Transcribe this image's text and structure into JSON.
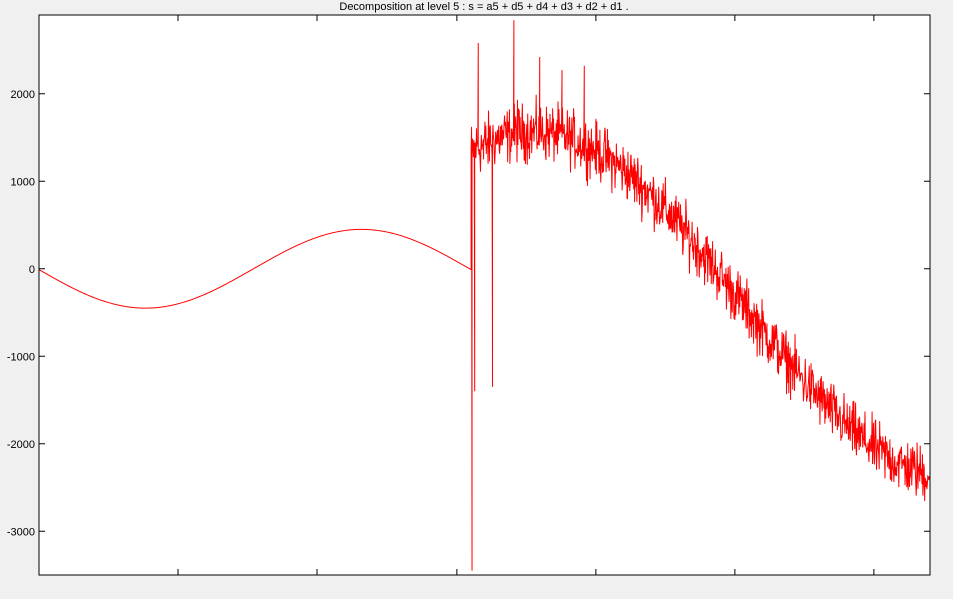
{
  "chart_data": {
    "type": "line",
    "title": "Decomposition at level 5 : s = a5 + d5 + d4 + d3 + d2 + d1 .",
    "xlabel": "",
    "ylabel": "",
    "xlim": [
      0,
      1000
    ],
    "ylim": [
      -3500,
      2900
    ],
    "yticks": [
      2000,
      1000,
      0,
      -1000,
      -2000,
      -3000
    ],
    "ytick_labels": [
      "2000",
      "1000",
      "0",
      "-1000",
      "-2000",
      "-3000"
    ],
    "xticks": [
      156,
      312,
      469,
      625,
      781,
      937
    ],
    "xtick_labels": [],
    "grid": false,
    "colors": {
      "series": "#ff0000",
      "axes_bg": "#ffffff",
      "figure_bg": "#f0f0f0",
      "axis": "#000000"
    },
    "series": [
      {
        "segments": [
          {
            "kind": "sine",
            "x_start": 0,
            "x_end": 485,
            "amplitude": 450,
            "offset": 0,
            "period": 485,
            "phase_x": 362
          },
          {
            "kind": "noisy-sine",
            "x_start": 485,
            "x_end": 1000,
            "amplitude": 1970,
            "offset": -410,
            "period": 940,
            "phase_x": 555,
            "noise": 160
          }
        ],
        "spikes": [
          {
            "x": 486,
            "y": -3450
          },
          {
            "x": 489,
            "y": -1400
          },
          {
            "x": 493,
            "y": 2580
          },
          {
            "x": 495,
            "y": 1250
          },
          {
            "x": 499,
            "y": 1250
          },
          {
            "x": 504,
            "y": 1200
          },
          {
            "x": 509,
            "y": -1350
          },
          {
            "x": 512,
            "y": 1350
          },
          {
            "x": 533,
            "y": 2840
          },
          {
            "x": 537,
            "y": 1930
          },
          {
            "x": 562,
            "y": 2420
          },
          {
            "x": 587,
            "y": 2270
          },
          {
            "x": 612,
            "y": 2320
          }
        ]
      }
    ]
  }
}
